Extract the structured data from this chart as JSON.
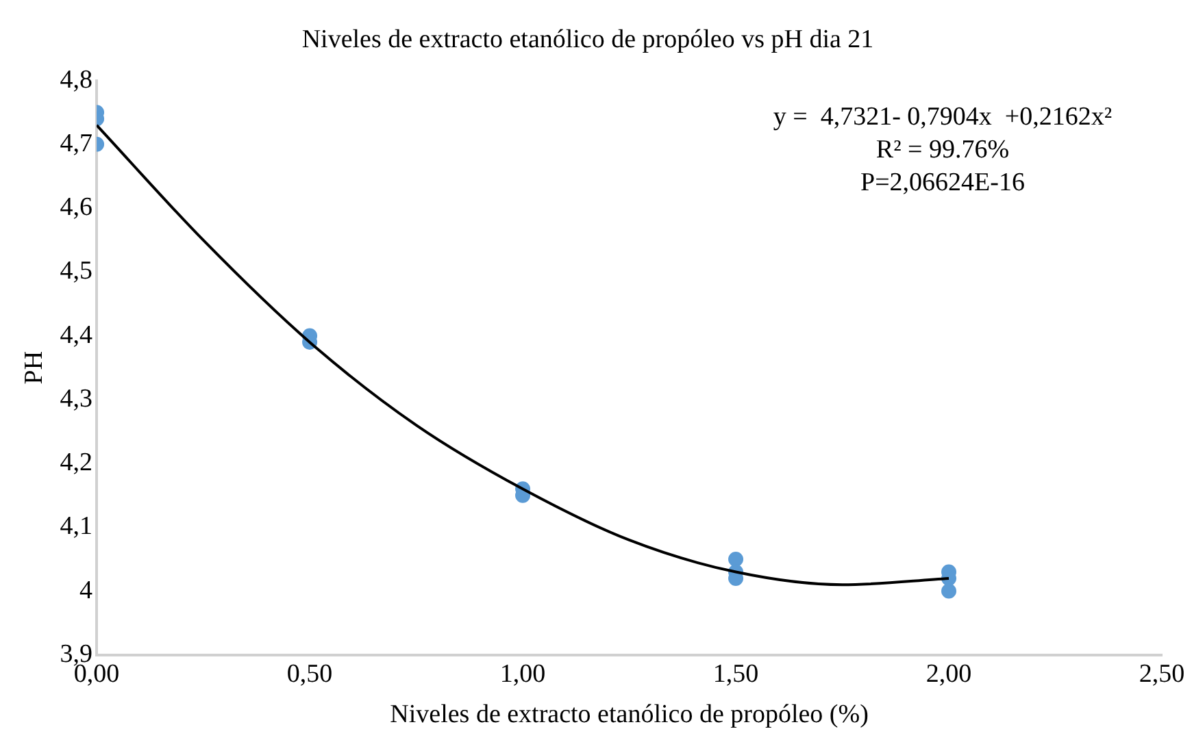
{
  "chart_data": {
    "type": "scatter",
    "title": "Niveles de extracto etanólico de propóleo vs pH dia 21",
    "xlabel": "Niveles de extracto etanólico de propóleo (%)",
    "ylabel": "PH",
    "series": [
      {
        "color": "#5b9bd5",
        "x": [
          0,
          0,
          0,
          0.5,
          0.5,
          1,
          1,
          1.5,
          1.5,
          1.5,
          2,
          2,
          2
        ],
        "values": [
          4.75,
          4.74,
          4.7,
          4.4,
          4.39,
          4.16,
          4.15,
          4.05,
          4.03,
          4.02,
          4.03,
          4.02,
          4.0
        ]
      },
      {
        "type": "line",
        "color": "#000000",
        "marker": "none",
        "x": [
          0,
          0.25,
          0.5,
          0.75,
          1,
          1.25,
          1.5,
          1.75,
          2
        ],
        "values": [
          4.73,
          4.55,
          4.39,
          4.26,
          4.16,
          4.08,
          4.03,
          4.01,
          4.02
        ]
      }
    ],
    "xlim": [
      0,
      2.5
    ],
    "xticks": [
      {
        "value": 0,
        "label": "0,00"
      },
      {
        "value": 0.5,
        "label": "0,50"
      },
      {
        "value": 1,
        "label": "1,00"
      },
      {
        "value": 1.5,
        "label": "1,50"
      },
      {
        "value": 2,
        "label": "2,00"
      },
      {
        "value": 2.5,
        "label": "2,50"
      }
    ],
    "ylim": [
      3.9,
      4.8
    ],
    "yticks": [
      {
        "value": 3.9,
        "label": "3,9"
      },
      4,
      {
        "value": 4.1,
        "label": "4,1"
      },
      {
        "value": 4.2,
        "label": "4,2"
      },
      {
        "value": 4.3,
        "label": "4,3"
      },
      {
        "value": 4.4,
        "label": "4,4"
      },
      {
        "value": 4.5,
        "label": "4,5"
      },
      {
        "value": 4.6,
        "label": "4,6"
      },
      {
        "value": 4.7,
        "label": "4,7"
      },
      {
        "value": 4.8,
        "label": "4,8"
      }
    ],
    "grid": false,
    "legend": false,
    "marker": "circle",
    "annotations": [
      "y =  4,7321- 0,7904x  +0,2162x²",
      "R² = 99.76%",
      "P=2,06624E-16"
    ]
  }
}
